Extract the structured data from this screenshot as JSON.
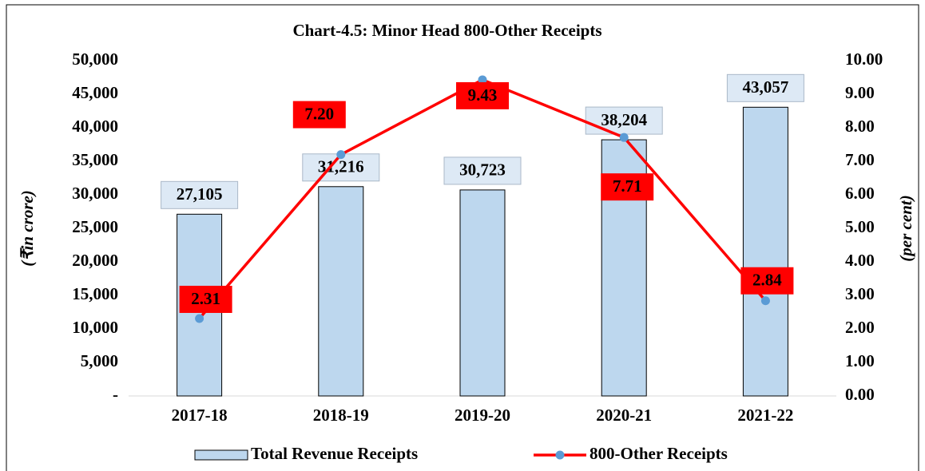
{
  "chart_data": {
    "type": "bar",
    "title": "Chart-4.5: Minor Head 800-Other Receipts",
    "categories": [
      "2017-18",
      "2018-19",
      "2019-20",
      "2020-21",
      "2021-22"
    ],
    "series": [
      {
        "name": "Total Revenue Receipts",
        "type": "bar",
        "color": "#bdd7ee",
        "values": [
          27105,
          31216,
          30723,
          38204,
          43057
        ],
        "value_labels": [
          "27,105",
          "31,216",
          "30,723",
          "38,204",
          "43,057"
        ]
      },
      {
        "name": "800-Other Receipts",
        "type": "line",
        "axis": "y2",
        "color": "#ff0000",
        "marker_color": "#5b9bd5",
        "values": [
          2.31,
          7.2,
          9.43,
          7.71,
          2.84
        ],
        "value_labels": [
          "2.31",
          "7.20",
          "9.43",
          "7.71",
          "2.84"
        ]
      }
    ],
    "y_label": "(₹in crore)",
    "y2_label": "(per cent)",
    "ylim": [
      0,
      50000
    ],
    "yticks": [
      {
        "value": 0,
        "label": "-"
      },
      {
        "value": 5000,
        "label": "5,000"
      },
      {
        "value": 10000,
        "label": "10,000"
      },
      {
        "value": 15000,
        "label": "15,000"
      },
      {
        "value": 20000,
        "label": "20,000"
      },
      {
        "value": 25000,
        "label": "25,000"
      },
      {
        "value": 30000,
        "label": "30,000"
      },
      {
        "value": 35000,
        "label": "35,000"
      },
      {
        "value": 40000,
        "label": "40,000"
      },
      {
        "value": 45000,
        "label": "45,000"
      },
      {
        "value": 50000,
        "label": "50,000"
      }
    ],
    "y2lim": [
      0,
      10
    ],
    "y2ticks": [
      {
        "value": 0,
        "label": "0.00"
      },
      {
        "value": 1,
        "label": "1.00"
      },
      {
        "value": 2,
        "label": "2.00"
      },
      {
        "value": 3,
        "label": "3.00"
      },
      {
        "value": 4,
        "label": "4.00"
      },
      {
        "value": 5,
        "label": "5.00"
      },
      {
        "value": 6,
        "label": "6.00"
      },
      {
        "value": 7,
        "label": "7.00"
      },
      {
        "value": 8,
        "label": "8.00"
      },
      {
        "value": 9,
        "label": "9.00"
      },
      {
        "value": 10,
        "label": "10.00"
      }
    ],
    "grid": false,
    "legend": "bottom"
  }
}
